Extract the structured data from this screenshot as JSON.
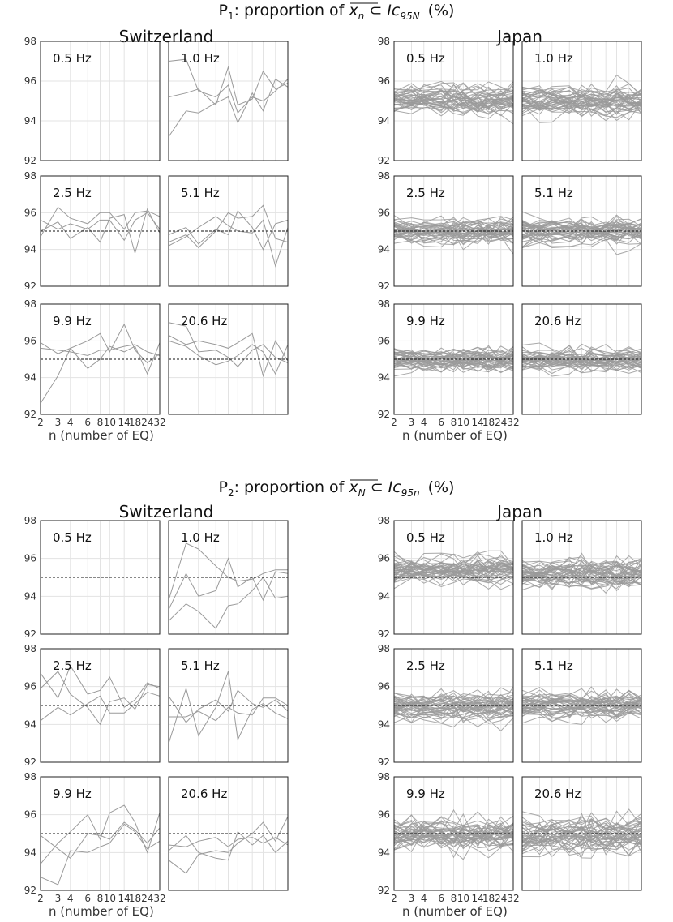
{
  "figure": {
    "sections": [
      {
        "id": "P1",
        "title_prefix": "P",
        "title_subscript": "1",
        "title_main": ": proportion of ",
        "title_math_symbol": "x",
        "title_math_symbol_subscript": "n",
        "title_math_subset": " ⊂ ",
        "title_math_ic": "Ic",
        "title_math_ic_subscript": "95N",
        "title_suffix": "(%)"
      },
      {
        "id": "P2",
        "title_prefix": "P",
        "title_subscript": "2",
        "title_main": ": proportion of ",
        "title_math_symbol": "x",
        "title_math_symbol_subscript": "N",
        "title_math_subset": " ⊂ ",
        "title_math_ic": "Ic",
        "title_math_ic_subscript": "95n",
        "title_suffix": "(%)"
      }
    ],
    "countries": [
      "Switzerland",
      "Japan"
    ],
    "frequencies": [
      "0.5 Hz",
      "1.0 Hz",
      "2.5 Hz",
      "5.1 Hz",
      "9.9 Hz",
      "20.6 Hz"
    ],
    "x_tick_labels": [
      "2",
      "3",
      "4",
      "6",
      "8",
      "10",
      "14",
      "18",
      "24",
      "32"
    ],
    "xlabel": "n (number of EQ)",
    "y_tick_labels": [
      "92",
      "94",
      "96",
      "98"
    ]
  },
  "chart_data": {
    "type": "line",
    "x": [
      2,
      3,
      4,
      6,
      8,
      10,
      14,
      18,
      24,
      32
    ],
    "x_scale": "log",
    "ylim": [
      92,
      98
    ],
    "yticks": [
      92,
      94,
      96,
      98
    ],
    "reference_line": 95,
    "xlabel": "n (number of EQ)",
    "grid": true,
    "colors": {
      "series": "#9a9a9a",
      "reference": "#111111"
    },
    "panels": [
      {
        "section": "P1",
        "country": "Switzerland",
        "freq": "0.5 Hz",
        "series": []
      },
      {
        "section": "P1",
        "country": "Switzerland",
        "freq": "1.0 Hz",
        "series": [
          {
            "values": [
              97.0,
              97.1,
              95.5,
              95.2,
              95.8,
              94.4,
              95.2,
              95.0,
              95.5,
              96.1
            ]
          },
          {
            "values": [
              95.2,
              95.4,
              95.6,
              94.8,
              96.7,
              94.8,
              95.1,
              96.5,
              95.6,
              95.9
            ]
          },
          {
            "values": [
              93.2,
              94.5,
              94.4,
              94.9,
              95.2,
              93.9,
              95.4,
              94.5,
              96.1,
              95.7
            ]
          }
        ]
      },
      {
        "section": "P1",
        "country": "Switzerland",
        "freq": "2.5 Hz",
        "series": [
          {
            "values": [
              94.7,
              96.3,
              95.7,
              95.4,
              96.0,
              96.0,
              95.1,
              96.0,
              96.1,
              95.8
            ]
          },
          {
            "values": [
              95.0,
              95.5,
              94.6,
              95.2,
              94.4,
              95.7,
              95.9,
              93.8,
              96.2,
              94.9
            ]
          },
          {
            "values": [
              95.6,
              95.1,
              95.4,
              95.1,
              95.6,
              95.6,
              94.5,
              95.6,
              96.0,
              95.1
            ]
          }
        ]
      },
      {
        "section": "P1",
        "country": "Switzerland",
        "freq": "5.1 Hz",
        "series": [
          {
            "values": [
              94.4,
              94.8,
              94.1,
              95.0,
              96.0,
              95.7,
              95.8,
              96.4,
              94.6,
              94.4
            ]
          },
          {
            "values": [
              94.8,
              95.2,
              94.3,
              95.1,
              94.8,
              96.1,
              95.2,
              94.0,
              95.4,
              95.6
            ]
          },
          {
            "values": [
              94.2,
              94.7,
              95.2,
              95.8,
              95.3,
              95.0,
              94.9,
              95.6,
              93.1,
              95.2
            ]
          }
        ]
      },
      {
        "section": "P1",
        "country": "Switzerland",
        "freq": "9.9 Hz",
        "series": [
          {
            "values": [
              92.6,
              94.1,
              95.6,
              96.0,
              96.4,
              95.4,
              96.9,
              95.5,
              94.8,
              95.3
            ]
          },
          {
            "values": [
              95.9,
              95.3,
              95.6,
              94.5,
              95.0,
              95.7,
              95.4,
              95.7,
              94.2,
              95.9
            ]
          },
          {
            "values": [
              95.6,
              95.5,
              95.4,
              95.2,
              95.5,
              95.5,
              95.7,
              95.8,
              95.4,
              95.2
            ]
          }
        ]
      },
      {
        "section": "P1",
        "country": "Switzerland",
        "freq": "20.6 Hz",
        "series": [
          {
            "values": [
              97.0,
              96.8,
              95.4,
              95.5,
              95.1,
              94.6,
              95.5,
              95.8,
              95.1,
              94.8
            ]
          },
          {
            "values": [
              96.3,
              95.8,
              96.0,
              95.8,
              95.6,
              95.9,
              96.4,
              94.1,
              96.0,
              94.9
            ]
          },
          {
            "values": [
              96.0,
              95.7,
              95.2,
              94.7,
              94.9,
              95.2,
              95.8,
              95.4,
              94.2,
              95.8
            ]
          }
        ]
      },
      {
        "section": "P2",
        "country": "Switzerland",
        "freq": "0.5 Hz",
        "series": []
      },
      {
        "section": "P2",
        "country": "Switzerland",
        "freq": "1.0 Hz",
        "series": [
          {
            "values": [
              93.8,
              96.8,
              96.5,
              95.6,
              95.0,
              94.8,
              94.9,
              95.2,
              95.4,
              95.4
            ]
          },
          {
            "values": [
              92.7,
              93.6,
              93.2,
              92.3,
              93.5,
              93.6,
              94.3,
              95.0,
              93.9,
              94.0
            ]
          },
          {
            "values": [
              93.3,
              95.2,
              94.0,
              94.3,
              96.0,
              94.5,
              95.0,
              93.8,
              95.3,
              95.2
            ]
          }
        ]
      },
      {
        "section": "P2",
        "country": "Switzerland",
        "freq": "2.5 Hz",
        "series": [
          {
            "values": [
              96.7,
              95.4,
              97.1,
              95.6,
              95.8,
              96.5,
              94.9,
              95.3,
              96.2,
              95.9
            ]
          },
          {
            "values": [
              95.9,
              96.8,
              95.6,
              94.9,
              94.0,
              95.2,
              95.4,
              94.8,
              96.1,
              96.0
            ]
          },
          {
            "values": [
              94.2,
              94.9,
              94.5,
              95.1,
              95.5,
              94.6,
              94.6,
              95.1,
              95.7,
              95.5
            ]
          }
        ]
      },
      {
        "section": "P2",
        "country": "Switzerland",
        "freq": "5.1 Hz",
        "series": [
          {
            "values": [
              93.0,
              95.9,
              93.4,
              94.9,
              96.8,
              93.2,
              94.8,
              95.1,
              94.6,
              94.3
            ]
          },
          {
            "values": [
              94.4,
              94.4,
              94.7,
              94.2,
              94.9,
              94.6,
              94.5,
              95.4,
              95.4,
              95.0
            ]
          },
          {
            "values": [
              95.5,
              94.1,
              94.8,
              95.3,
              94.7,
              95.8,
              95.1,
              94.9,
              95.3,
              94.7
            ]
          }
        ]
      },
      {
        "section": "P2",
        "country": "Switzerland",
        "freq": "9.9 Hz",
        "series": [
          {
            "values": [
              93.4,
              94.5,
              95.1,
              96.0,
              94.7,
              96.1,
              96.5,
              95.6,
              94.0,
              96.1
            ]
          },
          {
            "values": [
              92.7,
              92.3,
              94.1,
              94.0,
              94.3,
              94.5,
              95.5,
              95.1,
              94.2,
              94.6
            ]
          },
          {
            "values": [
              94.9,
              94.2,
              93.7,
              95.0,
              94.9,
              94.7,
              95.6,
              95.2,
              94.5,
              95.3
            ]
          }
        ]
      },
      {
        "section": "P2",
        "country": "Switzerland",
        "freq": "20.6 Hz",
        "series": [
          {
            "values": [
              93.6,
              92.9,
              93.9,
              94.1,
              94.0,
              94.5,
              95.0,
              95.6,
              94.6,
              95.9
            ]
          },
          {
            "values": [
              94.1,
              94.9,
              94.0,
              93.7,
              93.6,
              95.1,
              94.4,
              94.9,
              94.0,
              94.6
            ]
          },
          {
            "values": [
              94.4,
              94.3,
              94.6,
              94.8,
              94.3,
              94.7,
              94.8,
              94.5,
              94.8,
              94.4
            ]
          }
        ]
      },
      {
        "section": "P1",
        "country": "Japan",
        "freq": "0.5 Hz",
        "band": {
          "count": 40,
          "center": 95.0,
          "spread": 0.55
        }
      },
      {
        "section": "P1",
        "country": "Japan",
        "freq": "1.0 Hz",
        "band": {
          "count": 40,
          "center": 95.0,
          "spread": 0.55
        }
      },
      {
        "section": "P1",
        "country": "Japan",
        "freq": "2.5 Hz",
        "band": {
          "count": 40,
          "center": 95.0,
          "spread": 0.55
        }
      },
      {
        "section": "P1",
        "country": "Japan",
        "freq": "5.1 Hz",
        "band": {
          "count": 40,
          "center": 95.0,
          "spread": 0.55
        }
      },
      {
        "section": "P1",
        "country": "Japan",
        "freq": "9.9 Hz",
        "band": {
          "count": 40,
          "center": 95.0,
          "spread": 0.5
        }
      },
      {
        "section": "P1",
        "country": "Japan",
        "freq": "20.6 Hz",
        "band": {
          "count": 40,
          "center": 95.0,
          "spread": 0.5
        }
      },
      {
        "section": "P2",
        "country": "Japan",
        "freq": "0.5 Hz",
        "band": {
          "count": 40,
          "center": 95.4,
          "spread": 0.6
        }
      },
      {
        "section": "P2",
        "country": "Japan",
        "freq": "1.0 Hz",
        "band": {
          "count": 40,
          "center": 95.2,
          "spread": 0.6
        }
      },
      {
        "section": "P2",
        "country": "Japan",
        "freq": "2.5 Hz",
        "band": {
          "count": 40,
          "center": 95.0,
          "spread": 0.55
        }
      },
      {
        "section": "P2",
        "country": "Japan",
        "freq": "5.1 Hz",
        "band": {
          "count": 40,
          "center": 95.0,
          "spread": 0.55
        }
      },
      {
        "section": "P2",
        "country": "Japan",
        "freq": "9.9 Hz",
        "band": {
          "count": 40,
          "center": 94.9,
          "spread": 0.75
        }
      },
      {
        "section": "P2",
        "country": "Japan",
        "freq": "20.6 Hz",
        "band": {
          "count": 40,
          "center": 94.9,
          "spread": 0.8
        }
      }
    ]
  }
}
